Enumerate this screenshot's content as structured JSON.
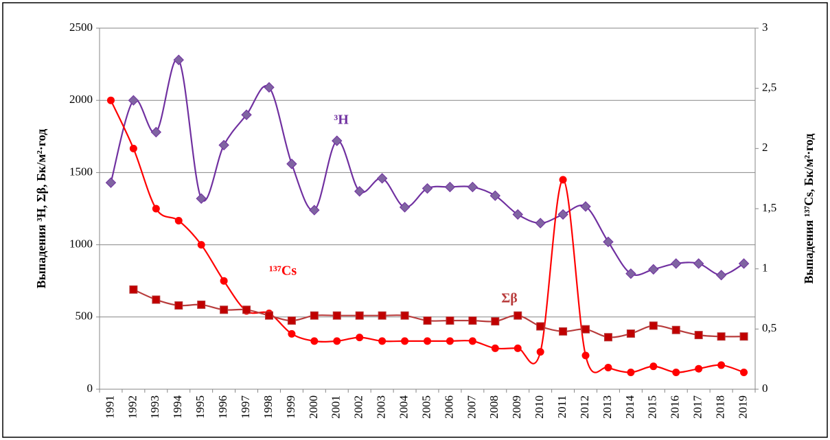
{
  "chart_data": {
    "type": "line",
    "categories": [
      "1991",
      "1992",
      "1993",
      "1994",
      "1995",
      "1996",
      "1997",
      "1998",
      "1999",
      "2000",
      "2001",
      "2002",
      "2003",
      "2004",
      "2005",
      "2006",
      "2007",
      "2008",
      "2009",
      "2010",
      "2011",
      "2012",
      "2013",
      "2014",
      "2015",
      "2016",
      "2017",
      "2018",
      "2019"
    ],
    "series": [
      {
        "name": "³H",
        "color": "#7030a0",
        "marker": "diamond",
        "axis": "y",
        "values": [
          1430,
          2000,
          1780,
          2280,
          1320,
          1690,
          1900,
          2090,
          1560,
          1240,
          1720,
          1370,
          1460,
          1260,
          1390,
          1400,
          1400,
          1340,
          1210,
          1150,
          1210,
          1265,
          1020,
          800,
          830,
          870,
          870,
          790,
          870
        ]
      },
      {
        "name": "¹³⁷Cs",
        "color": "#ff0000",
        "marker": "circle",
        "axis": "y2",
        "values": [
          2.4,
          2.0,
          1.5,
          1.4,
          1.2,
          0.9,
          0.65,
          0.63,
          0.46,
          0.4,
          0.4,
          0.43,
          0.4,
          0.4,
          0.4,
          0.4,
          0.4,
          0.34,
          0.34,
          0.31,
          1.74,
          0.28,
          0.18,
          0.14,
          0.19,
          0.14,
          0.17,
          0.2,
          0.14
        ]
      },
      {
        "name": "Σβ",
        "color": "#b83c3c",
        "marker": "square",
        "axis": "y",
        "values": [
          null,
          690,
          620,
          580,
          585,
          550,
          550,
          510,
          475,
          510,
          510,
          510,
          510,
          510,
          475,
          475,
          475,
          470,
          510,
          435,
          400,
          415,
          360,
          385,
          440,
          410,
          375,
          365,
          365
        ]
      }
    ],
    "ylabel": "Выпадения ³H, Σβ, Бк/м²·год",
    "y2label": "Выпадения ¹³⁷Cs, Бк/м²·год",
    "ylim": [
      0,
      2500
    ],
    "yticks": [
      0,
      500,
      1000,
      1500,
      2000,
      2500
    ],
    "y2lim": [
      0,
      3
    ],
    "y2ticks": [
      0,
      {
        "value": 0.5,
        "label": "0,5"
      },
      1,
      {
        "value": 1.5,
        "label": "1,5"
      },
      2,
      {
        "value": 2.5,
        "label": "2,5"
      },
      3
    ],
    "grid": true
  }
}
